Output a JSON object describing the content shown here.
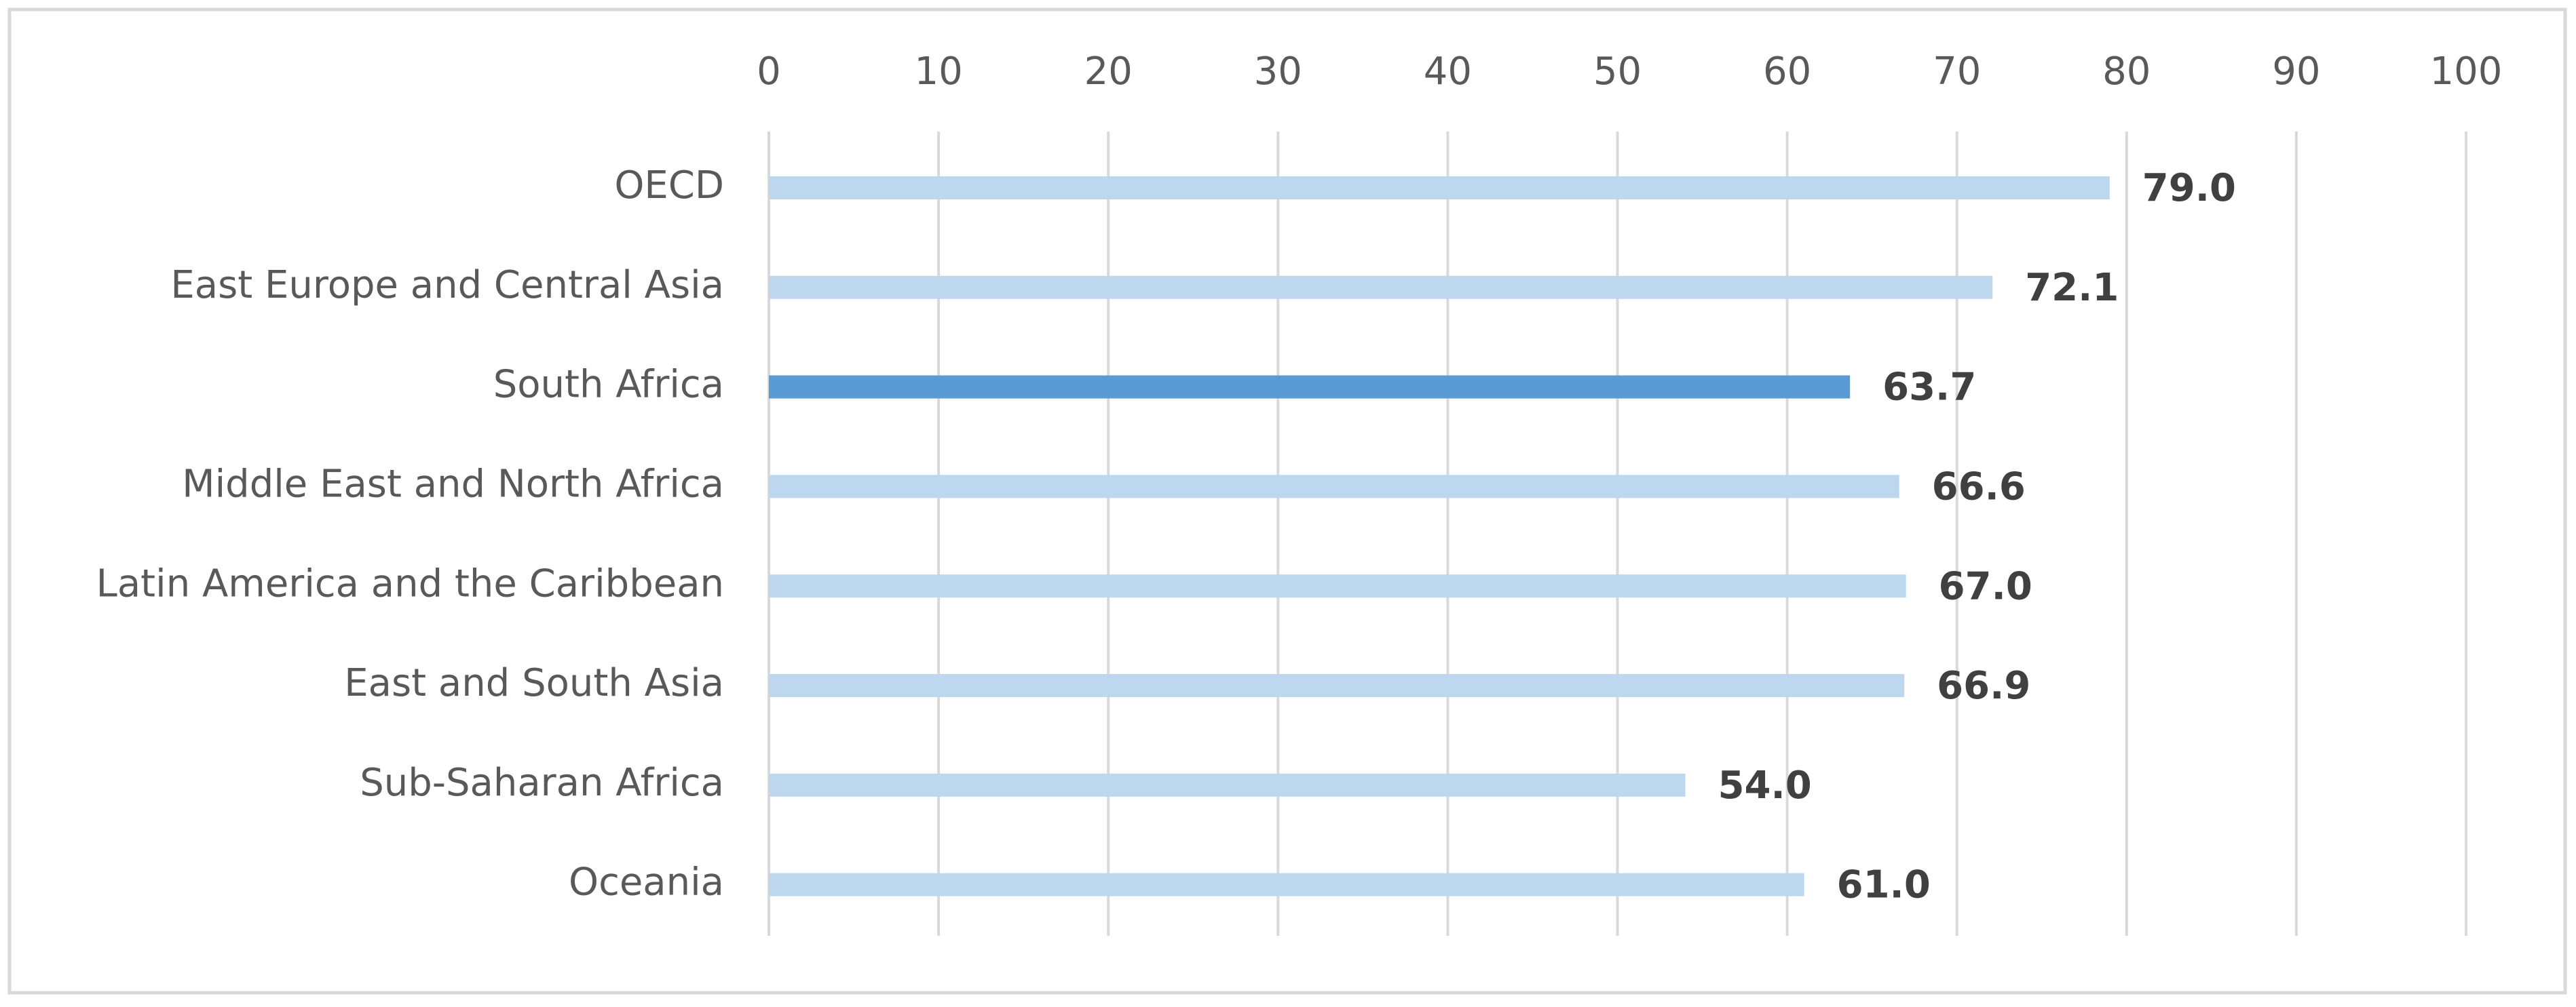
{
  "chart_data": {
    "type": "bar",
    "orientation": "horizontal",
    "categories": [
      "OECD",
      "East Europe and Central Asia",
      "South Africa",
      "Middle East and North Africa",
      "Latin America and the Caribbean",
      "East and South Asia",
      "Sub-Saharan Africa",
      "Oceania"
    ],
    "values": [
      79.0,
      72.1,
      63.7,
      66.6,
      67.0,
      66.9,
      54.0,
      61.0
    ],
    "value_labels": [
      "79.0",
      "72.1",
      "63.7",
      "66.6",
      "67.0",
      "66.9",
      "54.0",
      "61.0"
    ],
    "colors": [
      "#bdd7ee",
      "#bdd7ee",
      "#5b9bd5",
      "#bdd7ee",
      "#bdd7ee",
      "#bdd7ee",
      "#bdd7ee",
      "#bdd7ee"
    ],
    "xlim": [
      0,
      100
    ],
    "xticks": [
      0,
      10,
      20,
      30,
      40,
      50,
      60,
      70,
      80,
      90,
      100
    ],
    "grid": true
  }
}
